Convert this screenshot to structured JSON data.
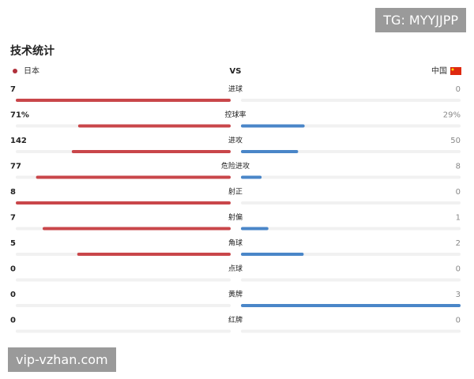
{
  "header": {
    "title": "技术统计",
    "home_team": "日本",
    "vs": "VS",
    "away_team": "中国"
  },
  "stats": [
    {
      "label": "进球",
      "home": 7,
      "away": 0
    },
    {
      "label": "控球率",
      "home": {
        "value": 71,
        "label": "71%"
      },
      "away": {
        "value": 29,
        "label": "29%"
      }
    },
    {
      "label": "进攻",
      "home": 142,
      "away": 50
    },
    {
      "label": "危险进攻",
      "home": 77,
      "away": 8
    },
    {
      "label": "射正",
      "home": 8,
      "away": 0
    },
    {
      "label": "射偏",
      "home": 7,
      "away": 1
    },
    {
      "label": "角球",
      "home": 5,
      "away": 2
    },
    {
      "label": "点球",
      "home": 0,
      "away": 0
    },
    {
      "label": "黄牌",
      "home": 0,
      "away": 3
    },
    {
      "label": "红牌",
      "home": 0,
      "away": 0
    }
  ],
  "watermarks": [
    "TG: MYYJJPP",
    "vip-vzhan.com"
  ]
}
